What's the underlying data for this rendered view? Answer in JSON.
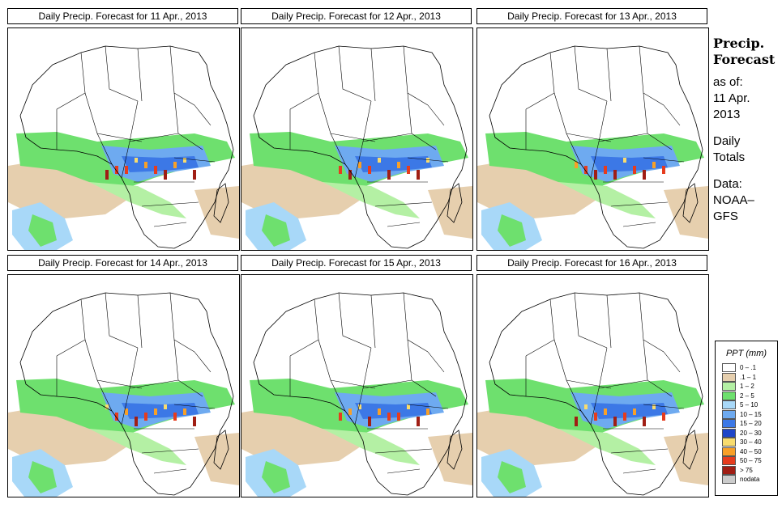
{
  "panels": [
    {
      "title": "Daily Precip. Forecast for  11 Apr., 2013",
      "pattern": [
        3,
        2,
        2,
        0,
        1,
        2,
        3,
        1,
        0,
        3
      ]
    },
    {
      "title": "Daily Precip. Forecast for  12 Apr., 2013",
      "pattern": [
        2,
        3,
        1,
        2,
        0,
        3,
        1,
        2,
        3,
        0
      ]
    },
    {
      "title": "Daily Precip. Forecast for  13 Apr., 2013",
      "pattern": [
        1,
        2,
        3,
        2,
        3,
        0,
        2,
        3,
        1,
        2
      ]
    },
    {
      "title": "Daily Precip. Forecast for  14 Apr., 2013",
      "pattern": [
        0,
        2,
        1,
        3,
        2,
        1,
        0,
        2,
        1,
        3
      ]
    },
    {
      "title": "Daily Precip. Forecast for  15 Apr., 2013",
      "pattern": [
        2,
        1,
        0,
        3,
        1,
        2,
        2,
        0,
        3,
        1
      ]
    },
    {
      "title": "Daily Precip. Forecast for  16 Apr., 2013",
      "pattern": [
        3,
        0,
        2,
        1,
        3,
        2,
        1,
        3,
        0,
        2
      ]
    }
  ],
  "side": {
    "heading": "Precip.\nForecast",
    "asof_label": "as of:",
    "asof_date": "11 Apr.\n2013",
    "period": "Daily\nTotals",
    "source": "Data:\nNOAA–\nGFS"
  },
  "legend": {
    "title": "PPT (mm)",
    "items": [
      {
        "label": "0 – .1",
        "color": "#ffffff"
      },
      {
        "label": ".1 – 1",
        "color": "#e6cfae"
      },
      {
        "label": "1 – 2",
        "color": "#b4f0a4"
      },
      {
        "label": "2 – 5",
        "color": "#6ee06e"
      },
      {
        "label": "5 – 10",
        "color": "#a8d8f8"
      },
      {
        "label": "10 – 15",
        "color": "#6eaaf0"
      },
      {
        "label": "15 – 20",
        "color": "#3c78e6"
      },
      {
        "label": "20 – 30",
        "color": "#1e46c8"
      },
      {
        "label": "30 – 40",
        "color": "#f8dc6e"
      },
      {
        "label": "40 – 50",
        "color": "#f8a028"
      },
      {
        "label": "50 – 75",
        "color": "#e63c1e"
      },
      {
        "label": "> 75",
        "color": "#a01e14"
      },
      {
        "label": "nodata",
        "color": "#cccccc"
      }
    ]
  }
}
